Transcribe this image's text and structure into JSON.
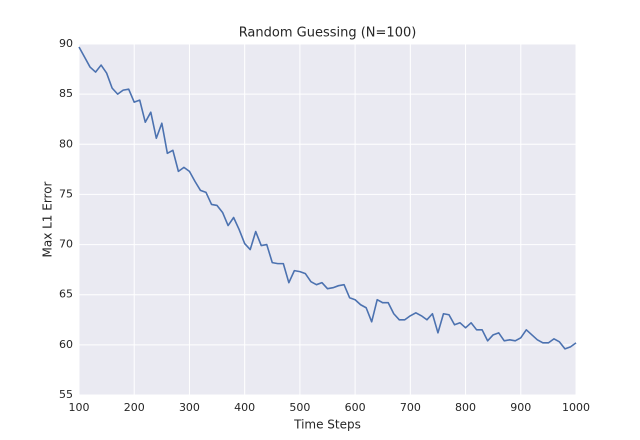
{
  "chart_data": {
    "type": "line",
    "title": "Random Guessing (N=100)",
    "x_label": "Time Steps",
    "y_label": "Max L1 Error",
    "x": [
      100,
      110,
      120,
      130,
      140,
      150,
      160,
      170,
      180,
      190,
      200,
      210,
      220,
      230,
      240,
      250,
      260,
      270,
      280,
      290,
      300,
      310,
      320,
      330,
      340,
      350,
      360,
      370,
      380,
      390,
      400,
      410,
      420,
      430,
      440,
      450,
      460,
      470,
      480,
      490,
      500,
      510,
      520,
      530,
      540,
      550,
      560,
      570,
      580,
      590,
      600,
      610,
      620,
      630,
      640,
      650,
      660,
      670,
      680,
      690,
      700,
      710,
      720,
      730,
      740,
      750,
      760,
      770,
      780,
      790,
      800,
      810,
      820,
      830,
      840,
      850,
      860,
      870,
      880,
      890,
      900,
      910,
      920,
      930,
      940,
      950,
      960,
      970,
      980,
      990,
      1000
    ],
    "series": [
      {
        "name": "Max L1 Error",
        "color": "#4c72b0",
        "values": [
          89.7,
          88.7,
          87.7,
          87.2,
          87.9,
          87.1,
          85.6,
          85.0,
          85.4,
          85.5,
          84.2,
          84.4,
          82.2,
          83.2,
          80.6,
          82.1,
          79.1,
          79.4,
          77.3,
          77.7,
          77.3,
          76.3,
          75.4,
          75.2,
          74.0,
          73.9,
          73.2,
          71.9,
          72.7,
          71.5,
          70.1,
          69.5,
          71.3,
          69.9,
          70.0,
          68.2,
          68.1,
          68.1,
          66.2,
          67.4,
          67.3,
          67.1,
          66.3,
          66.0,
          66.2,
          65.6,
          65.7,
          65.9,
          66.0,
          64.7,
          64.5,
          64.0,
          63.7,
          62.3,
          64.5,
          64.2,
          64.2,
          63.1,
          62.5,
          62.5,
          62.9,
          63.2,
          62.9,
          62.5,
          63.1,
          61.2,
          63.1,
          63.0,
          62.0,
          62.2,
          61.7,
          62.2,
          61.5,
          61.5,
          60.4,
          61.0,
          61.2,
          60.4,
          60.5,
          60.4,
          60.7,
          61.5,
          61.0,
          60.5,
          60.2,
          60.2,
          60.6,
          60.3,
          59.6,
          59.8,
          60.2
        ]
      }
    ],
    "xlim": [
      100,
      1000
    ],
    "xticks": [
      100,
      200,
      300,
      400,
      500,
      600,
      700,
      800,
      900,
      1000
    ],
    "ylim": [
      55,
      90
    ],
    "yticks": [
      55,
      60,
      65,
      70,
      75,
      80,
      85,
      90
    ],
    "grid": true
  }
}
